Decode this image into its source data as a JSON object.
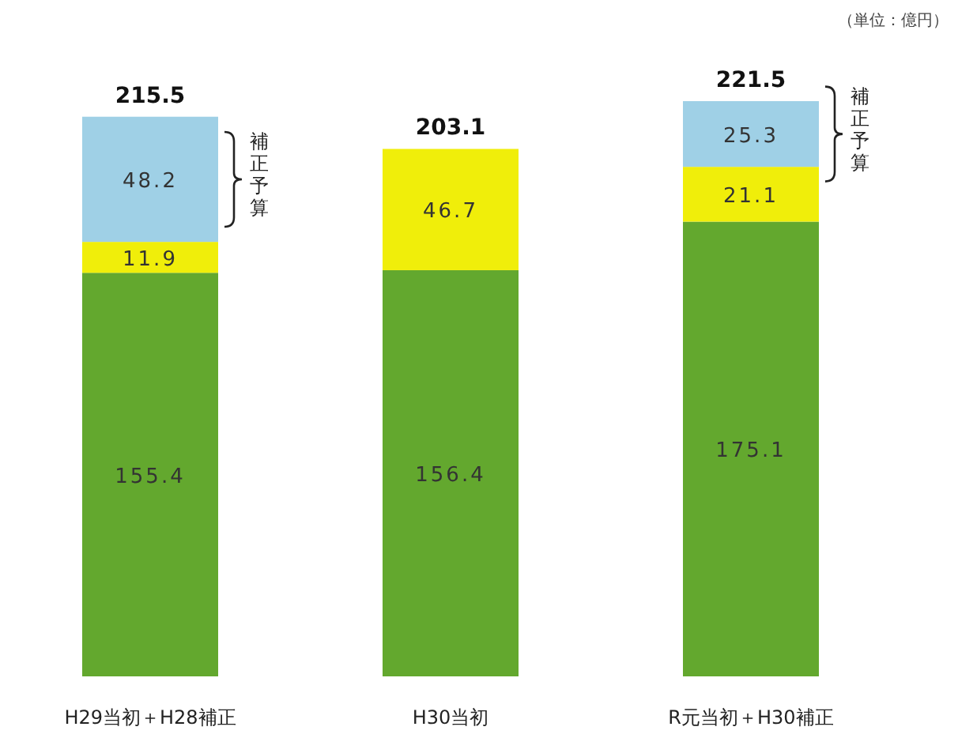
{
  "chart_data": {
    "type": "bar",
    "stacked": true,
    "data_labels": true,
    "categories": [
      "H29当初＋H28補正",
      "H30当初",
      "R元当初＋H30補正"
    ],
    "series": [
      {
        "color": "#63a82e",
        "values": [
          155.4,
          156.4,
          175.1
        ]
      },
      {
        "color": "#f0ee0a",
        "values": [
          11.9,
          46.7,
          21.1
        ]
      },
      {
        "color": "#9fd0e6",
        "values": [
          48.2,
          null,
          25.3
        ]
      }
    ],
    "totals": [
      "215.5",
      "203.1",
      "221.5"
    ],
    "annotations": [
      "（単位：億円）",
      "補正予算",
      "補正予算"
    ]
  }
}
